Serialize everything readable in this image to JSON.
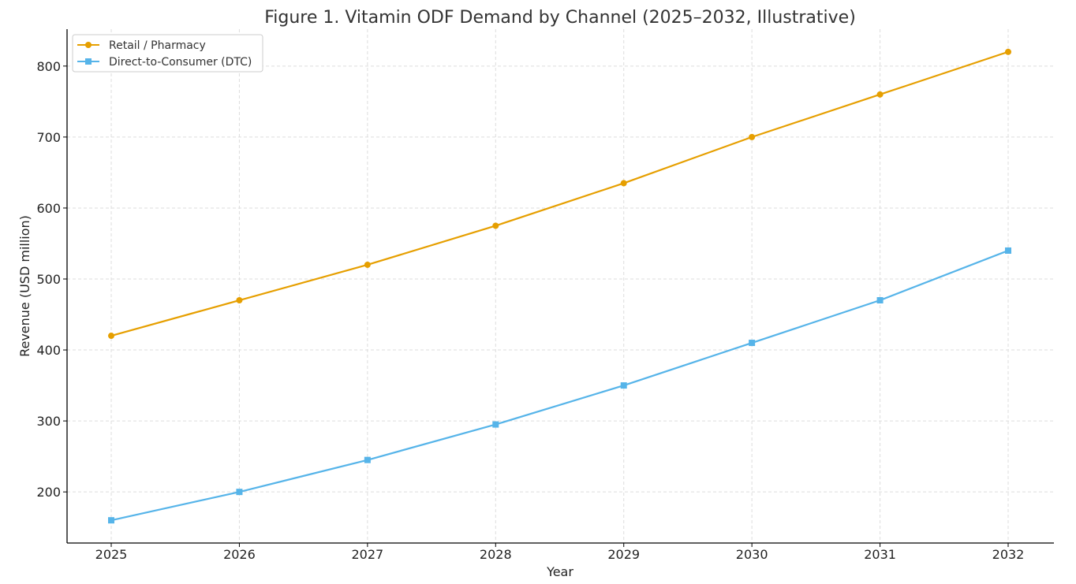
{
  "chart_data": {
    "type": "line",
    "title": "Figure 1. Vitamin ODF Demand by Channel (2025–2032, Illustrative)",
    "xlabel": "Year",
    "ylabel": "Revenue (USD million)",
    "categories": [
      "2025",
      "2026",
      "2027",
      "2028",
      "2029",
      "2030",
      "2031",
      "2032"
    ],
    "ylim": [
      128,
      852
    ],
    "yticks": [
      200,
      300,
      400,
      500,
      600,
      700,
      800
    ],
    "grid": true,
    "legend_position": "top-left",
    "series": [
      {
        "name": "Retail / Pharmacy",
        "color": "#e69f00",
        "marker": "circle",
        "values": [
          420,
          470,
          520,
          575,
          635,
          700,
          760,
          820
        ]
      },
      {
        "name": "Direct-to-Consumer (DTC)",
        "color": "#56b4e9",
        "marker": "square",
        "values": [
          160,
          200,
          245,
          295,
          350,
          410,
          470,
          540
        ]
      }
    ]
  }
}
